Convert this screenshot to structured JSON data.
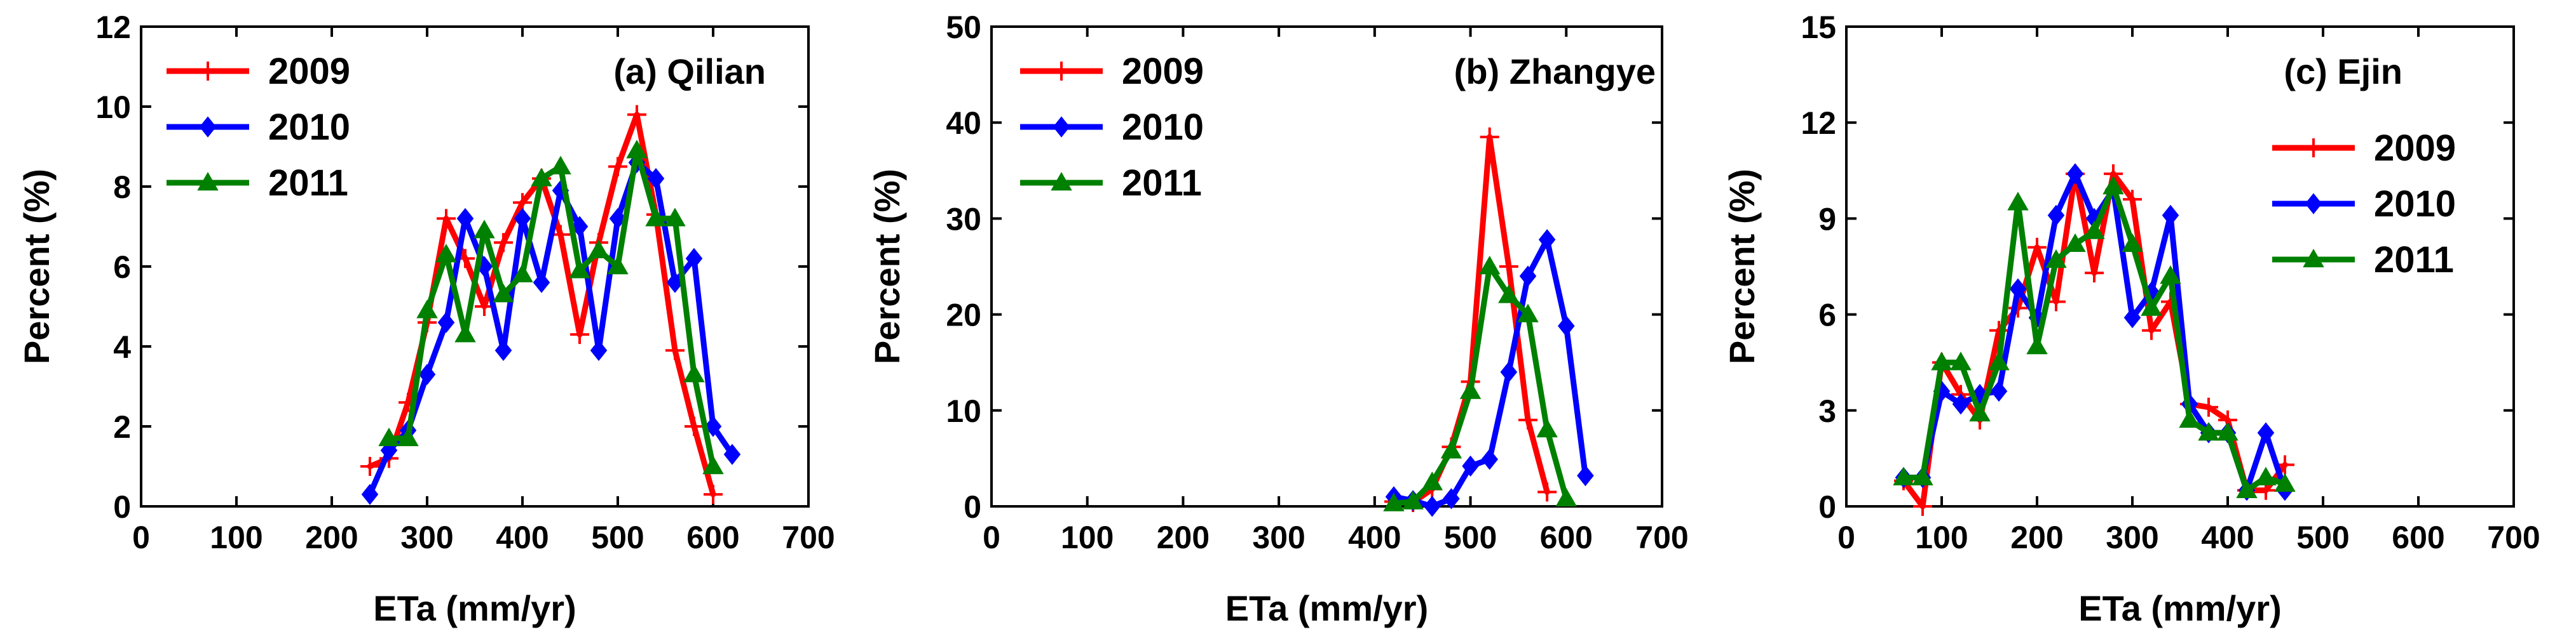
{
  "chart_data": [
    {
      "type": "line",
      "title": "(a) Qilian",
      "xlabel": "ETa (mm/yr)",
      "ylabel": "Percent (%)",
      "xlim": [
        0,
        700
      ],
      "ylim": [
        0,
        12
      ],
      "xticks": [
        "0",
        "100",
        "200",
        "300",
        "400",
        "500",
        "600",
        "700"
      ],
      "yticks": [
        "0",
        "2",
        "4",
        "6",
        "8",
        "10",
        "12"
      ],
      "legend": "top-left",
      "series": [
        {
          "name": "2009",
          "color": "#ff0000",
          "marker": "plus",
          "x": [
            240,
            260,
            280,
            300,
            320,
            340,
            360,
            380,
            400,
            420,
            440,
            460,
            480,
            500,
            520,
            540,
            560,
            580,
            600
          ],
          "y": [
            1.0,
            1.2,
            2.6,
            4.6,
            7.2,
            6.2,
            5.0,
            6.6,
            7.6,
            8.2,
            6.8,
            4.3,
            6.6,
            8.5,
            9.8,
            7.3,
            3.9,
            2.0,
            0.3
          ]
        },
        {
          "name": "2010",
          "color": "#0000ff",
          "marker": "diamond",
          "x": [
            240,
            260,
            280,
            300,
            320,
            340,
            360,
            380,
            400,
            420,
            440,
            460,
            480,
            500,
            520,
            540,
            560,
            580,
            600,
            620
          ],
          "y": [
            0.3,
            1.4,
            1.9,
            3.3,
            4.6,
            7.2,
            6.0,
            3.9,
            7.2,
            5.6,
            7.9,
            7.0,
            3.9,
            7.2,
            8.6,
            8.2,
            5.6,
            6.2,
            2.0,
            1.3
          ]
        },
        {
          "name": "2011",
          "color": "#008000",
          "marker": "triangle",
          "x": [
            260,
            280,
            300,
            320,
            340,
            360,
            380,
            400,
            420,
            440,
            460,
            480,
            500,
            520,
            540,
            560,
            580,
            600
          ],
          "y": [
            1.7,
            1.7,
            4.9,
            6.3,
            4.3,
            6.9,
            5.3,
            5.8,
            8.2,
            8.5,
            5.9,
            6.4,
            6.0,
            8.9,
            7.2,
            7.2,
            3.3,
            1.0
          ]
        }
      ]
    },
    {
      "type": "line",
      "title": "(b) Zhangye",
      "xlabel": "ETa (mm/yr)",
      "ylabel": "Percent (%)",
      "xlim": [
        0,
        700
      ],
      "ylim": [
        0,
        50
      ],
      "xticks": [
        "0",
        "100",
        "200",
        "300",
        "400",
        "500",
        "600",
        "700"
      ],
      "yticks": [
        "0",
        "10",
        "20",
        "30",
        "40",
        "50"
      ],
      "legend": "top-left",
      "series": [
        {
          "name": "2009",
          "color": "#ff0000",
          "marker": "plus",
          "x": [
            420,
            440,
            460,
            480,
            500,
            520,
            540,
            560,
            580
          ],
          "y": [
            0.5,
            0.4,
            1.8,
            6.2,
            13.0,
            38.5,
            25.0,
            9.0,
            1.5
          ]
        },
        {
          "name": "2010",
          "color": "#0000ff",
          "marker": "diamond",
          "x": [
            420,
            440,
            460,
            480,
            500,
            520,
            540,
            560,
            580,
            600,
            620
          ],
          "y": [
            1.0,
            0.6,
            0.0,
            0.8,
            4.2,
            4.9,
            14.0,
            24.0,
            27.8,
            18.8,
            3.2
          ]
        },
        {
          "name": "2011",
          "color": "#008000",
          "marker": "triangle",
          "x": [
            420,
            440,
            460,
            480,
            500,
            520,
            540,
            560,
            580,
            600
          ],
          "y": [
            0.3,
            0.5,
            2.5,
            5.8,
            12.0,
            25.0,
            22.0,
            20.0,
            8.0,
            0.8
          ]
        }
      ]
    },
    {
      "type": "line",
      "title": "(c) Ejin",
      "xlabel": "ETa (mm/yr)",
      "ylabel": "Percent (%)",
      "xlim": [
        0,
        700
      ],
      "ylim": [
        0,
        15
      ],
      "xticks": [
        "0",
        "100",
        "200",
        "300",
        "400",
        "500",
        "600",
        "700"
      ],
      "yticks": [
        "0",
        "3",
        "6",
        "9",
        "12",
        "15"
      ],
      "legend": "top-right",
      "series": [
        {
          "name": "2009",
          "color": "#ff0000",
          "marker": "plus",
          "x": [
            60,
            80,
            100,
            120,
            140,
            160,
            180,
            200,
            220,
            240,
            260,
            280,
            300,
            320,
            340,
            360,
            380,
            400,
            420,
            440,
            460
          ],
          "y": [
            0.8,
            0.0,
            4.5,
            3.5,
            2.7,
            5.5,
            6.2,
            8.1,
            6.4,
            10.4,
            7.3,
            10.4,
            9.6,
            5.5,
            6.4,
            3.2,
            3.1,
            2.7,
            0.5,
            0.5,
            1.3
          ]
        },
        {
          "name": "2010",
          "color": "#0000ff",
          "marker": "diamond",
          "x": [
            60,
            80,
            100,
            120,
            140,
            160,
            180,
            200,
            220,
            240,
            260,
            280,
            300,
            320,
            340,
            360,
            380,
            400,
            420,
            440,
            460
          ],
          "y": [
            0.9,
            0.9,
            3.6,
            3.2,
            3.5,
            3.6,
            6.8,
            5.9,
            9.1,
            10.4,
            9.0,
            9.9,
            5.9,
            6.7,
            9.1,
            3.2,
            2.3,
            2.3,
            0.5,
            2.3,
            0.5
          ]
        },
        {
          "name": "2011",
          "color": "#008000",
          "marker": "triangle",
          "x": [
            60,
            80,
            100,
            120,
            140,
            160,
            180,
            200,
            220,
            240,
            260,
            280,
            300,
            320,
            340,
            360,
            380,
            400,
            420,
            440,
            460
          ],
          "y": [
            0.9,
            0.9,
            4.5,
            4.5,
            2.9,
            4.5,
            9.5,
            5.0,
            7.7,
            8.2,
            8.6,
            10.0,
            8.2,
            6.2,
            7.2,
            2.7,
            2.3,
            2.3,
            0.5,
            0.9,
            0.7
          ]
        }
      ]
    }
  ]
}
